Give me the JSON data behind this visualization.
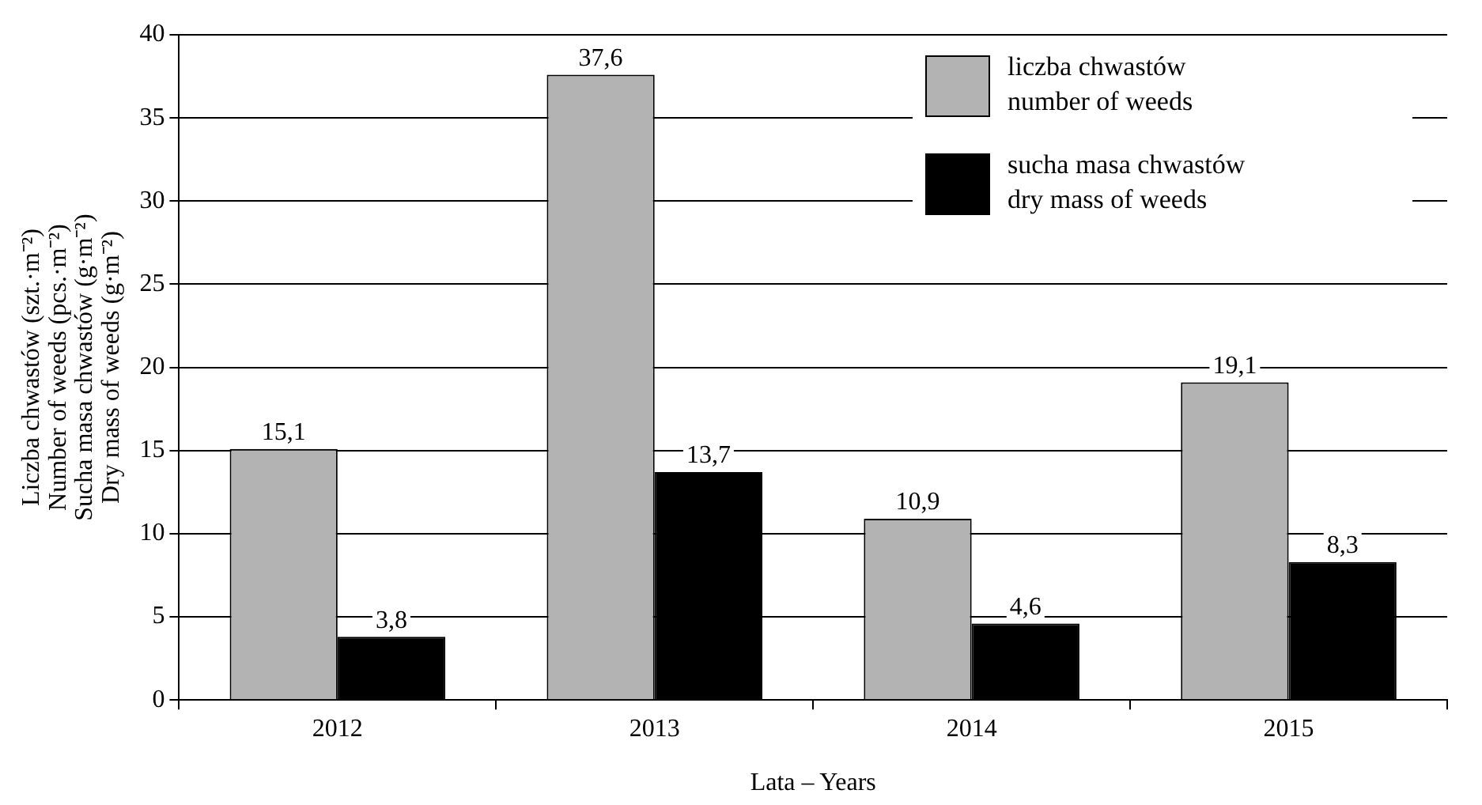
{
  "chart_data": {
    "type": "bar",
    "xlabel": "Lata – Years",
    "ylabel": "Liczba chwastów (szt.·m⁻²)\nNumber of weeds (pcs.·m⁻²)\nSucha masa chwastów (g·m⁻²)\nDry mass of weeds (g·m⁻²)",
    "categories": [
      "2012",
      "2013",
      "2014",
      "2015"
    ],
    "series": [
      {
        "name": "liczba chwastów\nnumber of weeds",
        "color": "#b3b3b3",
        "values": [
          15.1,
          37.6,
          10.9,
          19.1
        ],
        "value_labels": [
          "15,1",
          "37,6",
          "10,9",
          "19,1"
        ]
      },
      {
        "name": "sucha masa chwastów\ndry mass of weeds",
        "color": "#000000",
        "values": [
          3.8,
          13.7,
          4.6,
          8.3
        ],
        "value_labels": [
          "3,8",
          "13,7",
          "4,6",
          "8,3"
        ]
      }
    ],
    "ylim": [
      0,
      40
    ],
    "yticks": [
      0,
      5,
      10,
      15,
      20,
      25,
      30,
      35,
      40
    ],
    "grid": "y",
    "legend": "top right"
  }
}
